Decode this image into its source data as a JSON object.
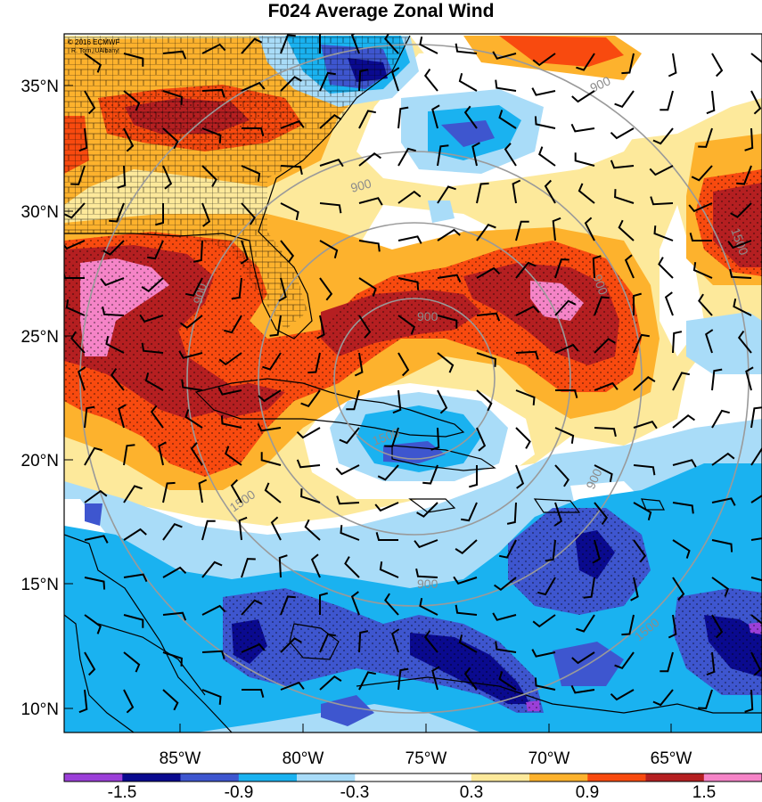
{
  "title": "F024 Average Zonal Wind",
  "credits": [
    "© 2016 ECMWF",
    "R. Torn, UAlbany"
  ],
  "latitude_labels": [
    "35°N",
    "30°N",
    "25°N",
    "20°N",
    "15°N",
    "10°N"
  ],
  "longitude_labels": [
    "85°W",
    "80°W",
    "75°W",
    "70°W",
    "65°W"
  ],
  "colorbar": {
    "colors": [
      "#9b3fd8",
      "#0a0a8f",
      "#3e56cf",
      "#1ab2f0",
      "#a9dcf8",
      "#ffffff",
      "#ffffff",
      "#fde99b",
      "#fdb22d",
      "#f84a0f",
      "#b51f21",
      "#f584c7"
    ],
    "tick_labels": [
      "-1.5",
      "-0.9",
      "-0.3",
      "0.3",
      "0.9",
      "1.5"
    ]
  },
  "range_ring_labels": [
    "900",
    "1500",
    "900",
    "900",
    "900",
    "900",
    "1500",
    "900",
    "1500",
    "900",
    "1500"
  ]
}
